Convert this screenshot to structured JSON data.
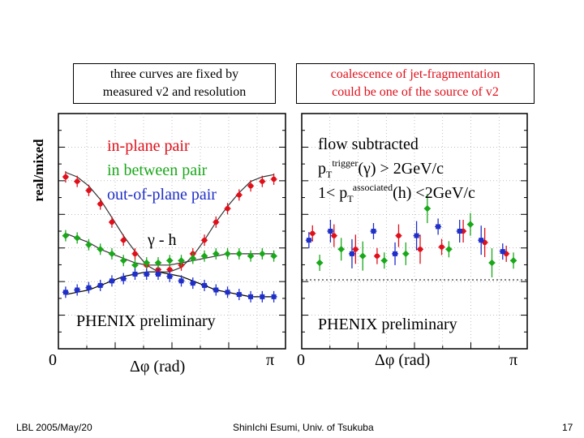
{
  "notes": {
    "left_line1": "three curves are fixed by",
    "left_line2": "measured v2 and resolution",
    "right_line1": "coalescence of jet-fragmentation",
    "right_line2": "could be one of the source of v2"
  },
  "ylabel": "real/mixed",
  "legend": {
    "items": [
      {
        "label": "in-plane pair",
        "color": "#e0101b"
      },
      {
        "label": "in between pair",
        "color": "#1aa81a"
      },
      {
        "label": "out-of-plane pair",
        "color": "#1f2fc8"
      }
    ]
  },
  "left_panel": {
    "particle_label": "γ - h",
    "watermark": "PHENIX preliminary",
    "x_min_label": "0",
    "x_axis_label": "Δφ (rad)",
    "x_max_label": "π"
  },
  "right_panel": {
    "line1": "flow subtracted",
    "line2_pre": "p",
    "line2_sub": "T",
    "line2_sup": "trigger",
    "line2_post": "(γ) > 2GeV/c",
    "line3_pre": "1< p",
    "line3_sub": "T",
    "line3_sup": "associated",
    "line3_post": "(h) <2GeV/c",
    "watermark": "PHENIX preliminary",
    "x_min_label": "0",
    "x_axis_label": "Δφ (rad)",
    "x_max_label": "π"
  },
  "footer": {
    "left": "LBL 2005/May/20",
    "center": "ShinIchi Esumi, Univ. of Tsukuba",
    "page": "17"
  },
  "chart_data": [
    {
      "type": "scatter",
      "x_range": [
        0,
        3.1416
      ],
      "series": [
        {
          "name": "in-plane pair",
          "color": "#e0101b",
          "x": [
            0.1,
            0.26,
            0.42,
            0.58,
            0.74,
            0.9,
            1.06,
            1.22,
            1.38,
            1.54,
            1.7,
            1.86,
            2.02,
            2.18,
            2.34,
            2.5,
            2.66,
            2.82,
            2.98
          ],
          "y": [
            1.16,
            1.15,
            1.13,
            1.1,
            1.06,
            1.02,
            0.99,
            0.965,
            0.955,
            0.955,
            0.965,
            0.99,
            1.02,
            1.06,
            1.09,
            1.12,
            1.14,
            1.15,
            1.155
          ]
        },
        {
          "name": "in between pair",
          "color": "#1aa81a",
          "x": [
            0.1,
            0.26,
            0.42,
            0.58,
            0.74,
            0.9,
            1.06,
            1.22,
            1.38,
            1.54,
            1.7,
            1.86,
            2.02,
            2.18,
            2.34,
            2.5,
            2.66,
            2.82,
            2.98
          ],
          "y": [
            1.03,
            1.025,
            1.01,
            1.0,
            0.99,
            0.975,
            0.965,
            0.97,
            0.97,
            0.975,
            0.975,
            0.98,
            0.985,
            0.99,
            0.99,
            0.99,
            0.985,
            0.99,
            0.985
          ]
        },
        {
          "name": "out-of-plane pair",
          "color": "#1f2fc8",
          "x": [
            0.1,
            0.26,
            0.42,
            0.58,
            0.74,
            0.9,
            1.06,
            1.22,
            1.38,
            1.54,
            1.7,
            1.86,
            2.02,
            2.18,
            2.34,
            2.5,
            2.66,
            2.82,
            2.98
          ],
          "y": [
            0.905,
            0.91,
            0.915,
            0.92,
            0.93,
            0.935,
            0.945,
            0.945,
            0.945,
            0.94,
            0.93,
            0.925,
            0.92,
            0.91,
            0.905,
            0.9,
            0.895,
            0.895,
            0.895
          ]
        }
      ],
      "curves": [
        {
          "color": "#e0101b",
          "y": [
            1.17,
            1.16,
            1.14,
            1.11,
            1.07,
            1.03,
            0.995,
            0.965,
            0.95,
            0.95,
            0.96,
            0.985,
            1.02,
            1.06,
            1.095,
            1.125,
            1.15,
            1.16,
            1.165
          ]
        },
        {
          "color": "#1aa81a",
          "y": [
            1.035,
            1.025,
            1.015,
            1.0,
            0.99,
            0.98,
            0.97,
            0.965,
            0.965,
            0.965,
            0.97,
            0.975,
            0.98,
            0.985,
            0.99,
            0.99,
            0.99,
            0.99,
            0.99
          ]
        },
        {
          "color": "#1f2fc8",
          "y": [
            0.9,
            0.905,
            0.91,
            0.92,
            0.93,
            0.94,
            0.945,
            0.95,
            0.95,
            0.945,
            0.94,
            0.93,
            0.92,
            0.91,
            0.905,
            0.9,
            0.895,
            0.895,
            0.895
          ]
        }
      ],
      "y_range": [
        0.78,
        1.3
      ],
      "xlabel": "Δφ (rad)",
      "ylabel": "real/mixed",
      "grid": true
    },
    {
      "type": "scatter",
      "x_range": [
        0,
        3.1416
      ],
      "series": [
        {
          "name": "in-plane pair",
          "color": "#e0101b",
          "x": [
            0.15,
            0.45,
            0.75,
            1.05,
            1.35,
            1.65,
            1.95,
            2.25,
            2.55,
            2.85
          ],
          "y": [
            1.035,
            1.03,
            1.0,
            0.985,
            1.03,
            1.0,
            1.005,
            1.04,
            1.015,
            0.99
          ]
        },
        {
          "name": "in between pair",
          "color": "#1aa81a",
          "x": [
            0.25,
            0.55,
            0.85,
            1.15,
            1.45,
            1.75,
            2.05,
            2.35,
            2.65,
            2.95
          ],
          "y": [
            0.97,
            1.0,
            0.985,
            0.975,
            0.99,
            1.09,
            1.0,
            1.055,
            0.97,
            0.975
          ]
        },
        {
          "name": "out-of-plane pair",
          "color": "#1f2fc8",
          "x": [
            0.1,
            0.4,
            0.7,
            1.0,
            1.3,
            1.6,
            1.9,
            2.2,
            2.5,
            2.8
          ],
          "y": [
            1.02,
            1.04,
            0.99,
            1.04,
            0.99,
            1.03,
            1.05,
            1.04,
            1.02,
            0.995
          ]
        }
      ],
      "y_range": [
        0.78,
        1.3
      ],
      "xlabel": "Δφ (rad)",
      "grid": true
    }
  ]
}
